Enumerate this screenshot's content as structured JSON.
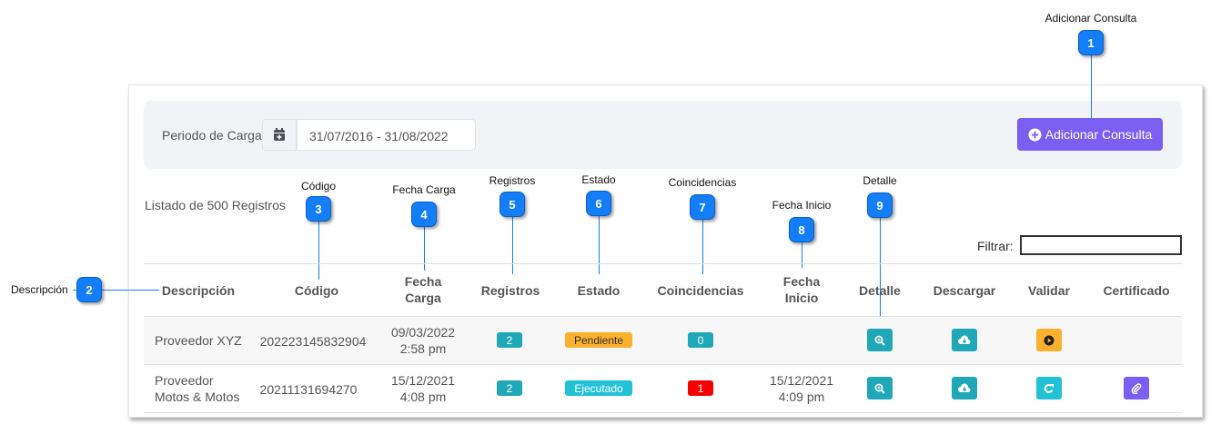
{
  "filter": {
    "period_label": "Periodo de Carga",
    "period_value": "31/07/2016 - 31/08/2022",
    "add_button": "Adicionar Consulta"
  },
  "list_count": "Listado de 500 Registros",
  "search_label": "Filtrar:",
  "callouts": [
    {
      "n": "1",
      "label": "Adicionar Consulta"
    },
    {
      "n": "2",
      "label": "Descripción"
    },
    {
      "n": "3",
      "label": "Código"
    },
    {
      "n": "4",
      "label": "Fecha Carga"
    },
    {
      "n": "5",
      "label": "Registros"
    },
    {
      "n": "6",
      "label": "Estado"
    },
    {
      "n": "7",
      "label": "Coincidencias"
    },
    {
      "n": "8",
      "label": "Fecha Inicio"
    },
    {
      "n": "9",
      "label": "Detalle"
    }
  ],
  "table": {
    "headers": {
      "desc": "Descripción",
      "code": "Código",
      "fc1": "Fecha",
      "fc2": "Carga",
      "reg": "Registros",
      "estado": "Estado",
      "coin": "Coincidencias",
      "fi1": "Fecha",
      "fi2": "Inicio",
      "detalle": "Detalle",
      "descargar": "Descargar",
      "validar": "Validar",
      "cert": "Certificado"
    },
    "rows": [
      {
        "d1": "Proveedor XYZ",
        "d2": "",
        "code": "202223145832904",
        "fc_date": "09/03/2022",
        "fc_time": "2:58 pm",
        "reg": "2",
        "estado": "Pendiente",
        "coin": "0",
        "fi_date": "",
        "fi_time": ""
      },
      {
        "d1": "Proveedor",
        "d2": "Motos & Motos",
        "code": "20211131694270",
        "fc_date": "15/12/2021",
        "fc_time": "4:08 pm",
        "reg": "2",
        "estado": "Ejecutado",
        "coin": "1",
        "fi_date": "15/12/2021",
        "fi_time": "4:09 pm"
      }
    ]
  },
  "colors": {
    "callout": "#137ef7",
    "accent": "#7a5ff0",
    "info": "#20a8b8",
    "warning": "#fbb12e",
    "danger": "#f40000",
    "cyan": "#22c1d6"
  }
}
